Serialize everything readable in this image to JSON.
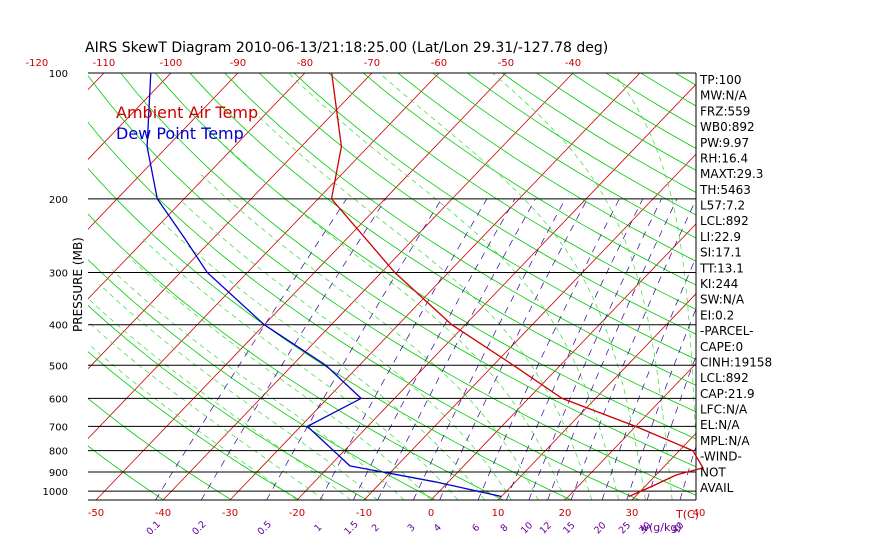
{
  "title": "AIRS SkewT Diagram 2010-06-13/21:18:25.00 (Lat/Lon 29.31/-127.78 deg)",
  "legend": {
    "ambient": "Ambient Air Temp",
    "dewpoint": "Dew Point Temp",
    "ambient_color": "#cc0000",
    "dewpoint_color": "#0000cc"
  },
  "colors": {
    "isotherm": "#cc0000",
    "dry_adiabat": "#00cc00",
    "moist_adiabat": "#33dd33",
    "mixing_ratio": "#330099",
    "frame": "#000000",
    "top_ticks": "#cc0000",
    "bottom_ticks": "#cc0000",
    "mixing_labels": "#660099"
  },
  "axes": {
    "ylabel": "PRESSURE (MB)",
    "temp_unit_label": "T(C)",
    "mixing_unit_label": "w(g/kg)",
    "pressure_ticks": [
      "100",
      "200",
      "300",
      "400",
      "500",
      "600",
      "700",
      "800",
      "900",
      "1000"
    ],
    "top_ticks": [
      "-120",
      "-110",
      "-100",
      "-90",
      "-80",
      "-70",
      "-60",
      "-50",
      "-40"
    ],
    "bottom_ticks": [
      "-50",
      "-40",
      "-30",
      "-20",
      "-10",
      "0",
      "10",
      "20",
      "30",
      "40"
    ],
    "mixing_ticks": [
      "0.1",
      "0.2",
      "0.5",
      "1",
      "1.5",
      "2",
      "3",
      "4",
      "6",
      "8",
      "10",
      "12",
      "15",
      "20",
      "25",
      "30",
      "40"
    ]
  },
  "indices": [
    "TP:100",
    "MW:N/A",
    "FRZ:559",
    "WB0:892",
    "PW:9.97",
    "RH:16.4",
    "MAXT:29.3",
    "TH:5463",
    "L57:7.2",
    "LCL:892",
    "LI:22.9",
    "SI:17.1",
    "TT:13.1",
    "KI:244",
    "SW:N/A",
    "EI:0.2",
    "-PARCEL-",
    "CAPE:0",
    "CINH:19158",
    "LCL:892",
    "CAP:21.9",
    "LFC:N/A",
    "EL:N/A",
    "MPL:N/A",
    "-WIND-",
    "NOT",
    "AVAIL"
  ],
  "chart_data": {
    "type": "line",
    "title": "AIRS SkewT Diagram 2010-06-13/21:18:25.00 (Lat/Lon 29.31/-127.78 deg)",
    "xlabel": "T(C)",
    "ylabel": "PRESSURE (MB)",
    "y_scale": "log",
    "ylim": [
      1050,
      100
    ],
    "xlim_at_bottom": [
      -55,
      45
    ],
    "grid": true,
    "legend_position": "top-left",
    "series": [
      {
        "name": "Ambient Air Temp",
        "points": [
          {
            "p": 1030,
            "t": 29
          },
          {
            "p": 975,
            "t": 31
          },
          {
            "p": 915,
            "t": 33
          },
          {
            "p": 880,
            "t": 36
          },
          {
            "p": 800,
            "t": 32
          },
          {
            "p": 700,
            "t": 20
          },
          {
            "p": 600,
            "t": 5
          },
          {
            "p": 500,
            "t": -7
          },
          {
            "p": 400,
            "t": -22
          },
          {
            "p": 300,
            "t": -38
          },
          {
            "p": 200,
            "t": -58
          },
          {
            "p": 150,
            "t": -64
          },
          {
            "p": 100,
            "t": -76
          }
        ]
      },
      {
        "name": "Dew Point Temp",
        "points": [
          {
            "p": 1030,
            "t": 10
          },
          {
            "p": 950,
            "t": -2
          },
          {
            "p": 870,
            "t": -17
          },
          {
            "p": 700,
            "t": -29
          },
          {
            "p": 600,
            "t": -25
          },
          {
            "p": 500,
            "t": -35
          },
          {
            "p": 400,
            "t": -50
          },
          {
            "p": 300,
            "t": -66
          },
          {
            "p": 250,
            "t": -74
          },
          {
            "p": 200,
            "t": -84
          },
          {
            "p": 150,
            "t": -93
          },
          {
            "p": 100,
            "t": -103
          }
        ]
      }
    ]
  }
}
